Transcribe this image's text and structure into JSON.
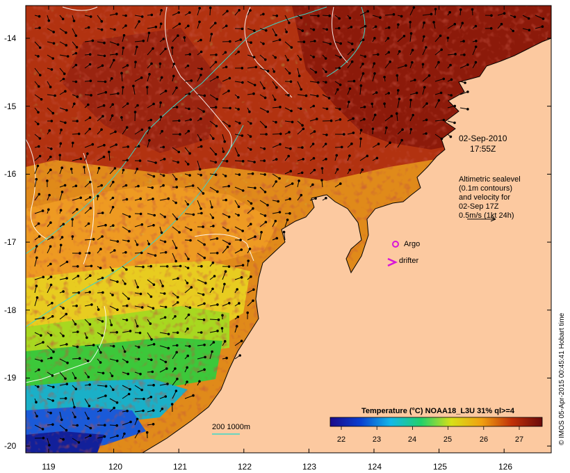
{
  "map": {
    "lat_ticks": [
      "-14",
      "-15",
      "-16",
      "-17",
      "-18",
      "-19",
      "-20"
    ],
    "lon_ticks": [
      "119",
      "120",
      "121",
      "122",
      "123",
      "124",
      "125",
      "126"
    ]
  },
  "annotations": {
    "date": "02-Sep-2010",
    "time": "17:55Z",
    "altimetry": [
      "Altimetric sealevel",
      "(0.1m contours)",
      "and velocity for",
      "02-Sep 17Z",
      "0.5m/s (1kt 24h)"
    ],
    "argo_label": "Argo",
    "drifter_label": "drifter",
    "depth_label": "200  1000m"
  },
  "colorbar": {
    "title": "Temperature (°C) NOAA18_L3U 31% ql>=4",
    "ticks": [
      "22",
      "23",
      "24",
      "25",
      "26",
      "27"
    ],
    "colors": [
      "#1a0a8a",
      "#0a3fd0",
      "#13b8e8",
      "#22d06a",
      "#d8e018",
      "#f0a010",
      "#c03008",
      "#6a0a0a"
    ]
  },
  "credit": "© IMOS 05-Apr-2015 00:45:41 Hobart time",
  "colors": {
    "land": "#fcc9a0",
    "argo": "#d815d8",
    "contour": "#ffffff",
    "isobath": "#3ad8c8"
  }
}
